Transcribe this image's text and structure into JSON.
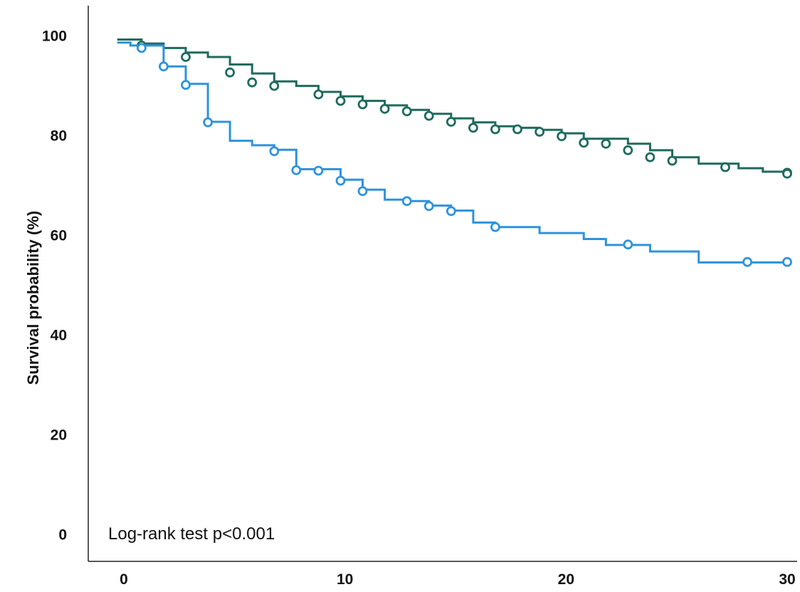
{
  "chart_data": {
    "type": "line",
    "subtype": "kaplan-meier-step",
    "title": "",
    "xlabel": "",
    "ylabel": "Survival probability (%)",
    "xlim": [
      0,
      30
    ],
    "ylim": [
      0,
      100
    ],
    "x_ticks": [
      0,
      10,
      20,
      30
    ],
    "y_ticks": [
      0,
      20,
      40,
      60,
      80,
      100
    ],
    "grid": false,
    "legend": "none",
    "annotation": "Log-rank test p<0.001",
    "series": [
      {
        "color": "#1e6b5e",
        "steps": [
          [
            -0.3,
            99.5
          ],
          [
            0.8,
            98.7
          ],
          [
            1.8,
            97.8
          ],
          [
            2.8,
            96.9
          ],
          [
            3.8,
            96.0
          ],
          [
            4.8,
            94.5
          ],
          [
            5.8,
            92.7
          ],
          [
            6.8,
            91.1
          ],
          [
            7.8,
            90.2
          ],
          [
            8.8,
            89.0
          ],
          [
            9.8,
            88.1
          ],
          [
            10.8,
            87.2
          ],
          [
            11.8,
            86.3
          ],
          [
            12.8,
            85.4
          ],
          [
            13.8,
            84.6
          ],
          [
            14.8,
            83.7
          ],
          [
            15.8,
            82.9
          ],
          [
            16.8,
            82.1
          ],
          [
            17.8,
            81.8
          ],
          [
            18.8,
            81.4
          ],
          [
            19.8,
            80.7
          ],
          [
            20.8,
            79.6
          ],
          [
            22.8,
            78.6
          ],
          [
            23.8,
            77.3
          ],
          [
            24.8,
            75.9
          ],
          [
            26.0,
            74.6
          ],
          [
            27.8,
            73.7
          ],
          [
            28.9,
            73.0
          ]
        ],
        "censored": [
          [
            0.8,
            98.3
          ],
          [
            2.8,
            96.0
          ],
          [
            4.8,
            92.9
          ],
          [
            5.8,
            90.9
          ],
          [
            6.8,
            90.2
          ],
          [
            8.8,
            88.5
          ],
          [
            9.8,
            87.2
          ],
          [
            10.8,
            86.5
          ],
          [
            11.8,
            85.6
          ],
          [
            12.8,
            85.1
          ],
          [
            13.8,
            84.2
          ],
          [
            14.8,
            83.0
          ],
          [
            15.8,
            81.8
          ],
          [
            16.8,
            81.5
          ],
          [
            17.8,
            81.5
          ],
          [
            18.8,
            81.0
          ],
          [
            19.8,
            80.1
          ],
          [
            20.8,
            78.8
          ],
          [
            21.8,
            78.6
          ],
          [
            22.8,
            77.3
          ],
          [
            23.8,
            75.9
          ],
          [
            24.8,
            75.2
          ],
          [
            27.2,
            73.9
          ],
          [
            30.0,
            72.8
          ],
          [
            30.0,
            72.6
          ]
        ]
      },
      {
        "color": "#2e93dd",
        "steps": [
          [
            -0.3,
            98.9
          ],
          [
            0.3,
            98.3
          ],
          [
            1.8,
            94.1
          ],
          [
            2.8,
            90.6
          ],
          [
            3.8,
            83.0
          ],
          [
            4.8,
            79.2
          ],
          [
            5.8,
            78.3
          ],
          [
            6.8,
            77.4
          ],
          [
            7.8,
            73.5
          ],
          [
            9.8,
            71.4
          ],
          [
            10.8,
            69.4
          ],
          [
            11.8,
            67.4
          ],
          [
            12.8,
            67.1
          ],
          [
            13.8,
            66.2
          ],
          [
            14.8,
            65.2
          ],
          [
            15.8,
            62.8
          ],
          [
            16.8,
            61.9
          ],
          [
            18.8,
            60.7
          ],
          [
            20.8,
            59.5
          ],
          [
            21.8,
            58.3
          ],
          [
            23.8,
            57.0
          ],
          [
            26.0,
            54.8
          ]
        ],
        "censored": [
          [
            0.8,
            97.8
          ],
          [
            1.8,
            94.1
          ],
          [
            2.8,
            90.4
          ],
          [
            3.8,
            82.9
          ],
          [
            6.8,
            77.1
          ],
          [
            7.8,
            73.3
          ],
          [
            8.8,
            73.2
          ],
          [
            9.8,
            71.2
          ],
          [
            10.8,
            69.1
          ],
          [
            12.8,
            67.1
          ],
          [
            13.8,
            66.1
          ],
          [
            14.8,
            65.1
          ],
          [
            16.8,
            61.9
          ],
          [
            22.8,
            58.4
          ],
          [
            28.2,
            54.9
          ],
          [
            30.0,
            54.9
          ]
        ]
      }
    ]
  }
}
